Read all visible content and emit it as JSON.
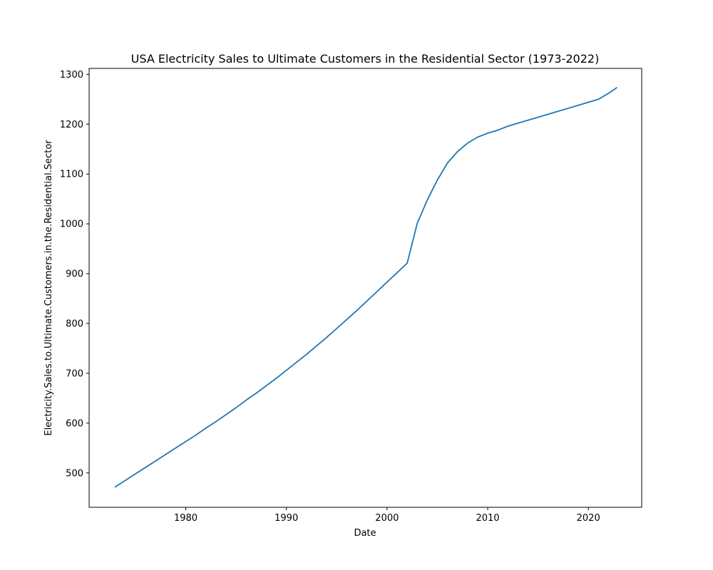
{
  "chart_data": {
    "type": "line",
    "title": "USA Electricity Sales to Ultimate Customers in the Residential Sector (1973-2022)",
    "xlabel": "Date",
    "ylabel": "Electricity.Sales.to.Ultimate.Customers.in.the.Residential.Sector",
    "xlim": [
      1970.4,
      2025.3
    ],
    "ylim": [
      431,
      1312
    ],
    "x_ticks": [
      1980,
      1990,
      2000,
      2010,
      2020
    ],
    "y_ticks": [
      500,
      600,
      700,
      800,
      900,
      1000,
      1100,
      1200,
      1300
    ],
    "grid": false,
    "line_color": "#1f77b4",
    "series": [
      {
        "x": [
          1973,
          1974,
          1975,
          1976,
          1977,
          1978,
          1979,
          1980,
          1981,
          1982,
          1983,
          1984,
          1985,
          1986,
          1987,
          1988,
          1989,
          1990,
          1991,
          1992,
          1993,
          1994,
          1995,
          1996,
          1997,
          1998,
          1999,
          2000,
          2001,
          2002,
          2003,
          2004,
          2005,
          2006,
          2007,
          2008,
          2009,
          2010,
          2011,
          2012,
          2013,
          2014,
          2015,
          2016,
          2017,
          2018,
          2019,
          2020,
          2021,
          2022,
          2022.8
        ],
        "values": [
          472,
          485,
          498,
          511,
          524,
          537,
          550,
          563,
          576,
          590,
          603,
          617,
          631,
          646,
          660,
          675,
          690,
          706,
          722,
          738,
          755,
          772,
          790,
          808,
          826,
          845,
          864,
          883,
          902,
          921,
          1001,
          1048,
          1088,
          1122,
          1145,
          1162,
          1174,
          1182,
          1188,
          1196,
          1202,
          1208,
          1214,
          1220,
          1226,
          1232,
          1238,
          1244,
          1250,
          1262,
          1273
        ]
      }
    ]
  }
}
